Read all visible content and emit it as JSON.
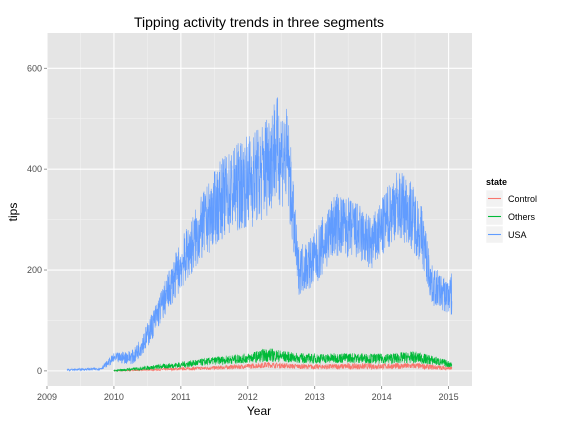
{
  "chart_data": {
    "type": "line",
    "title": "Tipping activity trends in three segments",
    "xlabel": "Year",
    "ylabel": "tips",
    "xlim": [
      2009.0,
      2015.35
    ],
    "ylim": [
      -30,
      670
    ],
    "x_ticks": [
      2009,
      2010,
      2011,
      2012,
      2013,
      2014,
      2015
    ],
    "y_ticks": [
      0,
      200,
      400,
      600
    ],
    "grid": true,
    "legend": {
      "title": "state",
      "placement": "right"
    },
    "series": [
      {
        "name": "Control",
        "color": "#F8766D",
        "x": [
          2010.0,
          2010.5,
          2011.0,
          2011.5,
          2012.0,
          2012.3,
          2012.7,
          2013.0,
          2013.5,
          2014.0,
          2014.5,
          2014.8,
          2015.05
        ],
        "y": [
          0,
          2,
          4,
          6,
          9,
          12,
          9,
          8,
          9,
          9,
          10,
          7,
          5
        ],
        "spread": [
          1,
          2,
          3,
          4,
          5,
          6,
          5,
          5,
          6,
          6,
          6,
          5,
          4
        ]
      },
      {
        "name": "Others",
        "color": "#00BA38",
        "x": [
          2010.0,
          2010.5,
          2011.0,
          2011.5,
          2012.0,
          2012.3,
          2012.7,
          2013.0,
          2013.5,
          2014.0,
          2014.5,
          2014.8,
          2015.05
        ],
        "y": [
          0,
          6,
          12,
          20,
          25,
          32,
          26,
          24,
          26,
          24,
          27,
          20,
          12
        ],
        "spread": [
          2,
          4,
          6,
          8,
          10,
          14,
          10,
          10,
          10,
          10,
          12,
          9,
          6
        ]
      },
      {
        "name": "USA",
        "color": "#619CFF",
        "x": [
          2009.3,
          2009.8,
          2010.0,
          2010.3,
          2010.5,
          2010.75,
          2011.0,
          2011.3,
          2011.6,
          2011.9,
          2012.2,
          2012.4,
          2012.6,
          2012.75,
          2013.0,
          2013.3,
          2013.6,
          2013.85,
          2014.0,
          2014.2,
          2014.4,
          2014.6,
          2014.75,
          2014.95,
          2015.05
        ],
        "y": [
          2,
          4,
          25,
          28,
          70,
          140,
          210,
          280,
          340,
          370,
          390,
          440,
          420,
          200,
          220,
          290,
          280,
          250,
          280,
          330,
          320,
          270,
          170,
          150,
          150
        ],
        "spread": [
          2,
          3,
          10,
          15,
          25,
          35,
          50,
          65,
          80,
          90,
          100,
          110,
          100,
          50,
          55,
          65,
          60,
          55,
          60,
          70,
          70,
          60,
          40,
          35,
          45
        ]
      }
    ]
  }
}
